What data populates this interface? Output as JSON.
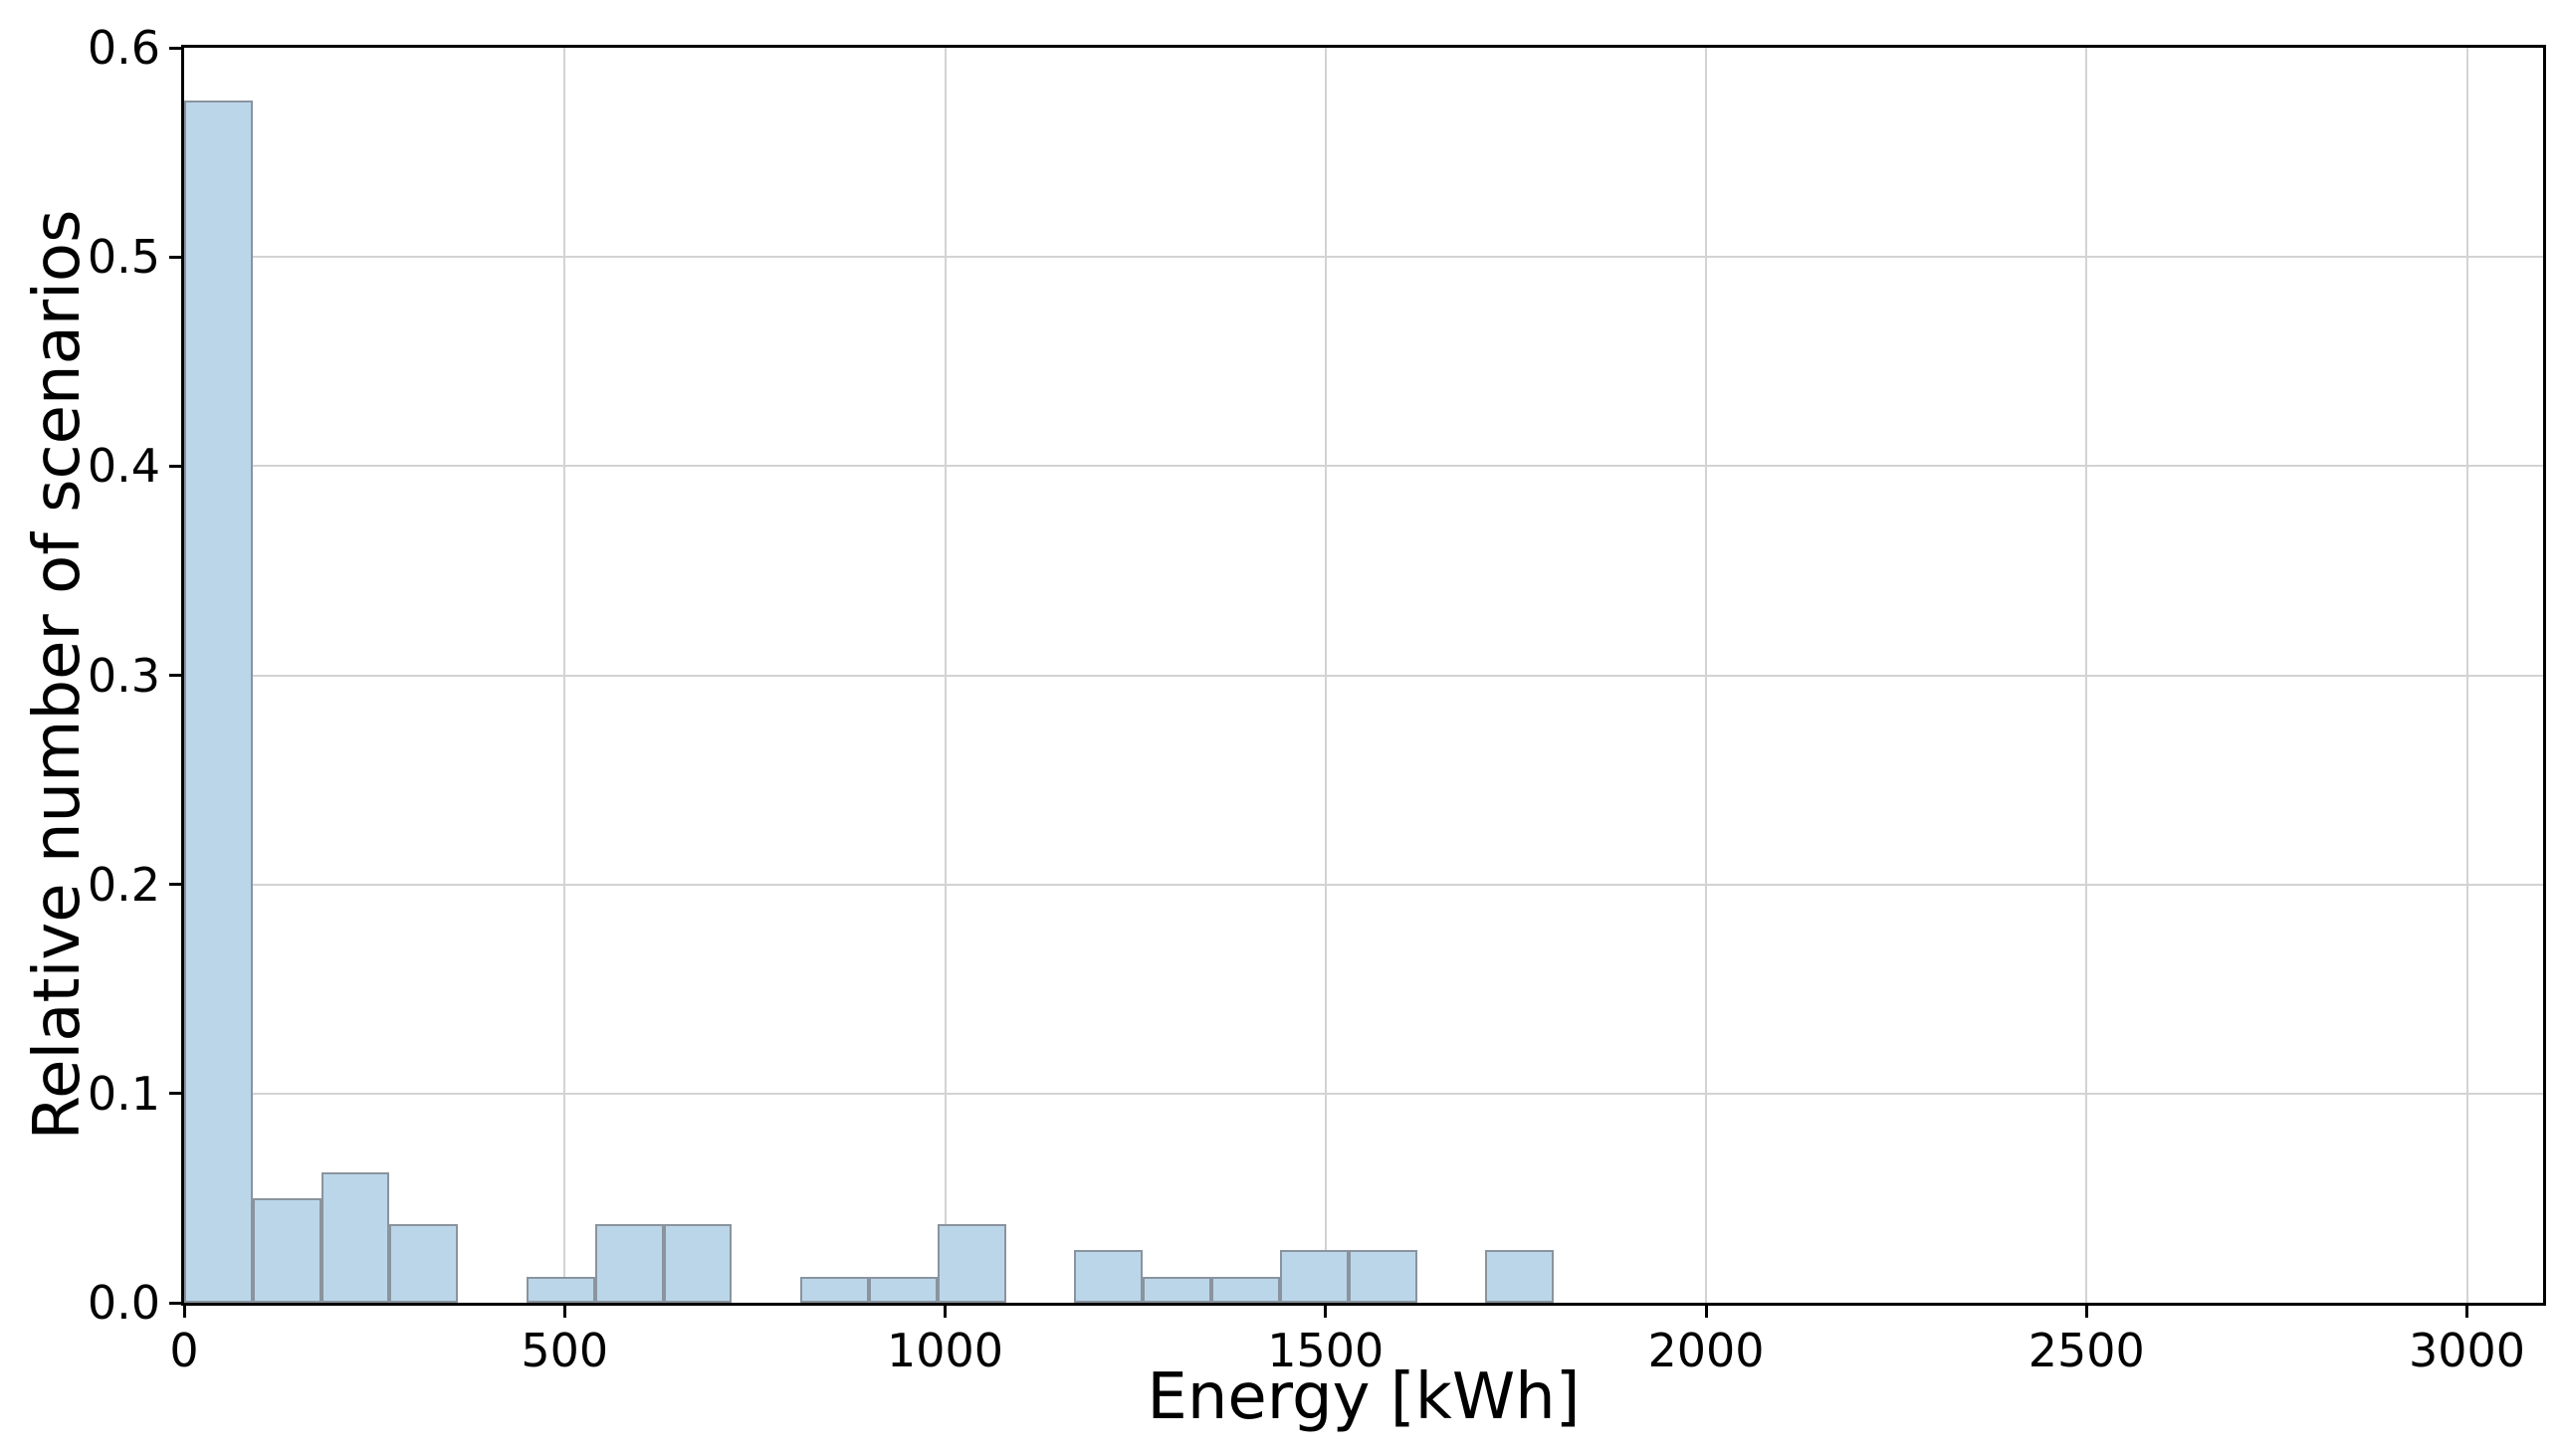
{
  "chart_data": {
    "type": "bar",
    "subtype": "histogram",
    "title": "",
    "xlabel": "Energy [kWh]",
    "ylabel": "Relative number of scenarios",
    "xlim": [
      0,
      3100
    ],
    "ylim": [
      0,
      0.6
    ],
    "grid": true,
    "legend": "none",
    "bin_width_kwh": 90,
    "x_ticks": [
      {
        "value": 0,
        "label": "0"
      },
      {
        "value": 500,
        "label": "500"
      },
      {
        "value": 1000,
        "label": "1000"
      },
      {
        "value": 1500,
        "label": "1500"
      },
      {
        "value": 2000,
        "label": "2000"
      },
      {
        "value": 2500,
        "label": "2500"
      },
      {
        "value": 3000,
        "label": "3000"
      }
    ],
    "y_ticks": [
      {
        "value": 0.0,
        "label": "0.0"
      },
      {
        "value": 0.1,
        "label": "0.1"
      },
      {
        "value": 0.2,
        "label": "0.2"
      },
      {
        "value": 0.3,
        "label": "0.3"
      },
      {
        "value": 0.4,
        "label": "0.4"
      },
      {
        "value": 0.5,
        "label": "0.5"
      },
      {
        "value": 0.6,
        "label": "0.6"
      }
    ],
    "bins": [
      {
        "x0": 0,
        "x1": 90,
        "value": 0.575
      },
      {
        "x0": 90,
        "x1": 180,
        "value": 0.05
      },
      {
        "x0": 180,
        "x1": 270,
        "value": 0.0625
      },
      {
        "x0": 270,
        "x1": 360,
        "value": 0.0375
      },
      {
        "x0": 360,
        "x1": 450,
        "value": 0
      },
      {
        "x0": 450,
        "x1": 540,
        "value": 0.0125
      },
      {
        "x0": 540,
        "x1": 630,
        "value": 0.0375
      },
      {
        "x0": 630,
        "x1": 720,
        "value": 0.0375
      },
      {
        "x0": 720,
        "x1": 810,
        "value": 0
      },
      {
        "x0": 810,
        "x1": 900,
        "value": 0.0125
      },
      {
        "x0": 900,
        "x1": 990,
        "value": 0.0125
      },
      {
        "x0": 990,
        "x1": 1080,
        "value": 0.0375
      },
      {
        "x0": 1080,
        "x1": 1170,
        "value": 0
      },
      {
        "x0": 1170,
        "x1": 1260,
        "value": 0.025
      },
      {
        "x0": 1260,
        "x1": 1350,
        "value": 0.0125
      },
      {
        "x0": 1350,
        "x1": 1440,
        "value": 0.0125
      },
      {
        "x0": 1440,
        "x1": 1530,
        "value": 0.025
      },
      {
        "x0": 1530,
        "x1": 1620,
        "value": 0.025
      },
      {
        "x0": 1620,
        "x1": 1710,
        "value": 0
      },
      {
        "x0": 1710,
        "x1": 1800,
        "value": 0.025
      }
    ],
    "colors": {
      "bar_fill": "#bcd6e9",
      "bar_edge": "#8a949e",
      "grid": "#d3d3d3",
      "spine": "#000000",
      "text": "#000000",
      "background": "#ffffff"
    }
  }
}
